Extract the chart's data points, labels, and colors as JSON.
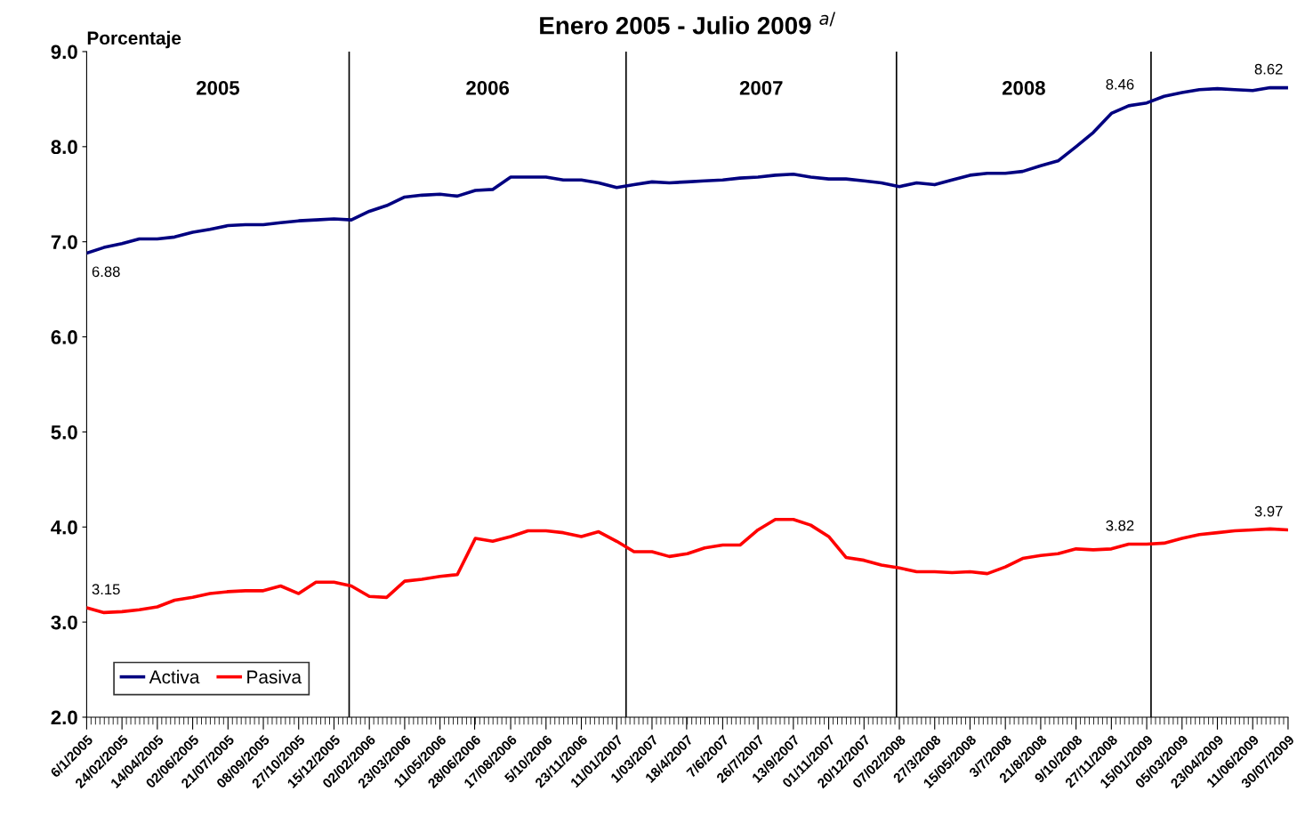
{
  "chart_data": {
    "type": "line",
    "title": "Enero 2005 - Julio 2009 $^{a/}$",
    "ylabel": "Porcentaje",
    "x": [
      "2005-01-06",
      "2005-01-30",
      "2005-02-24",
      "2005-03-20",
      "2005-04-14",
      "2005-05-08",
      "2005-06-02",
      "2005-06-26",
      "2005-07-21",
      "2005-08-14",
      "2005-09-08",
      "2005-10-02",
      "2005-10-27",
      "2005-11-20",
      "2005-12-15",
      "2006-01-08",
      "2006-02-02",
      "2006-02-26",
      "2006-03-23",
      "2006-04-16",
      "2006-05-11",
      "2006-06-04",
      "2006-06-29",
      "2006-07-23",
      "2006-08-17",
      "2006-09-10",
      "2006-10-05",
      "2006-10-29",
      "2006-11-23",
      "2006-12-17",
      "2007-01-11",
      "2007-02-04",
      "2007-03-01",
      "2007-03-25",
      "2007-04-19",
      "2007-05-13",
      "2007-06-07",
      "2007-07-01",
      "2007-07-26",
      "2007-08-19",
      "2007-09-13",
      "2007-10-07",
      "2007-11-01",
      "2007-11-25",
      "2007-12-20",
      "2008-01-13",
      "2008-02-07",
      "2008-03-02",
      "2008-03-27",
      "2008-04-20",
      "2008-05-15",
      "2008-06-08",
      "2008-07-03",
      "2008-07-27",
      "2008-08-21",
      "2008-09-14",
      "2008-10-09",
      "2008-11-02",
      "2008-11-27",
      "2008-12-21",
      "2009-01-15",
      "2009-02-08",
      "2009-03-05",
      "2009-03-29",
      "2009-04-23",
      "2009-05-17",
      "2009-06-11",
      "2009-07-05",
      "2009-07-30"
    ],
    "series": [
      {
        "name": "Activa",
        "color": "#000080",
        "values": [
          6.88,
          6.94,
          6.98,
          7.03,
          7.03,
          7.05,
          7.1,
          7.13,
          7.17,
          7.18,
          7.18,
          7.2,
          7.22,
          7.23,
          7.24,
          7.23,
          7.32,
          7.38,
          7.47,
          7.49,
          7.5,
          7.48,
          7.54,
          7.55,
          7.68,
          7.68,
          7.68,
          7.65,
          7.65,
          7.62,
          7.57,
          7.6,
          7.63,
          7.62,
          7.63,
          7.64,
          7.65,
          7.67,
          7.68,
          7.7,
          7.71,
          7.68,
          7.66,
          7.66,
          7.64,
          7.62,
          7.58,
          7.62,
          7.6,
          7.65,
          7.7,
          7.72,
          7.72,
          7.74,
          7.8,
          7.85,
          8.0,
          8.15,
          8.35,
          8.43,
          8.46,
          8.53,
          8.57,
          8.6,
          8.61,
          8.6,
          8.59,
          8.62,
          8.62
        ]
      },
      {
        "name": "Pasiva",
        "color": "#ff0000",
        "values": [
          3.15,
          3.1,
          3.11,
          3.13,
          3.16,
          3.23,
          3.26,
          3.3,
          3.32,
          3.33,
          3.33,
          3.38,
          3.3,
          3.42,
          3.42,
          3.38,
          3.27,
          3.26,
          3.43,
          3.45,
          3.48,
          3.5,
          3.88,
          3.85,
          3.9,
          3.96,
          3.96,
          3.94,
          3.9,
          3.95,
          3.85,
          3.74,
          3.74,
          3.69,
          3.72,
          3.78,
          3.81,
          3.81,
          3.97,
          4.08,
          4.08,
          4.02,
          3.9,
          3.68,
          3.65,
          3.6,
          3.57,
          3.53,
          3.53,
          3.52,
          3.53,
          3.51,
          3.58,
          3.67,
          3.7,
          3.72,
          3.77,
          3.76,
          3.77,
          3.82,
          3.82,
          3.83,
          3.88,
          3.92,
          3.94,
          3.96,
          3.97,
          3.98,
          3.97
        ]
      }
    ],
    "xlim": [
      "2005-01-06",
      "2009-07-30"
    ],
    "xticks": [
      {
        "value": "2005-01-06",
        "label": "6/1/2005"
      },
      {
        "value": "2005-02-24",
        "label": "24/02/2005"
      },
      {
        "value": "2005-04-14",
        "label": "14/04/2005"
      },
      {
        "value": "2005-06-02",
        "label": "02/06/2005"
      },
      {
        "value": "2005-07-21",
        "label": "21/07/2005"
      },
      {
        "value": "2005-09-08",
        "label": "08/09/2005"
      },
      {
        "value": "2005-10-27",
        "label": "27/10/2005"
      },
      {
        "value": "2005-12-15",
        "label": "15/12/2005"
      },
      {
        "value": "2006-02-02",
        "label": "02/02/2006"
      },
      {
        "value": "2006-03-23",
        "label": "23/03/2006"
      },
      {
        "value": "2006-05-11",
        "label": "11/05/2006"
      },
      {
        "value": "2006-06-28",
        "label": "28/06/2006"
      },
      {
        "value": "2006-08-17",
        "label": "17/08/2006"
      },
      {
        "value": "2006-10-05",
        "label": "5/10/2006"
      },
      {
        "value": "2006-11-23",
        "label": "23/11/2006"
      },
      {
        "value": "2007-01-11",
        "label": "11/01/2007"
      },
      {
        "value": "2007-03-01",
        "label": "1/03/2007"
      },
      {
        "value": "2007-04-18",
        "label": "18/4/2007"
      },
      {
        "value": "2007-06-07",
        "label": "7/6/2007"
      },
      {
        "value": "2007-07-26",
        "label": "26/7/2007"
      },
      {
        "value": "2007-09-13",
        "label": "13/9/2007"
      },
      {
        "value": "2007-11-01",
        "label": "01/11/2007"
      },
      {
        "value": "2007-12-20",
        "label": "20/12/2007"
      },
      {
        "value": "2008-02-07",
        "label": "07/02/2008"
      },
      {
        "value": "2008-03-27",
        "label": "27/3/2008"
      },
      {
        "value": "2008-05-15",
        "label": "15/05/2008"
      },
      {
        "value": "2008-07-03",
        "label": "3/7/2008"
      },
      {
        "value": "2008-08-21",
        "label": "21/8/2008"
      },
      {
        "value": "2008-10-09",
        "label": "9/10/2008"
      },
      {
        "value": "2008-11-27",
        "label": "27/11/2008"
      },
      {
        "value": "2009-01-15",
        "label": "15/01/2009"
      },
      {
        "value": "2009-03-05",
        "label": "05/03/2009"
      },
      {
        "value": "2009-04-23",
        "label": "23/04/2009"
      },
      {
        "value": "2009-06-11",
        "label": "11/06/2009"
      },
      {
        "value": "2009-07-30",
        "label": "30/07/2009"
      }
    ],
    "ylim": [
      2,
      9
    ],
    "yticks": [
      {
        "value": 2,
        "label": "2.0"
      },
      {
        "value": 3,
        "label": "3.0"
      },
      {
        "value": 4,
        "label": "4.0"
      },
      {
        "value": 5,
        "label": "5.0"
      },
      {
        "value": 6,
        "label": "6.0"
      },
      {
        "value": 7,
        "label": "7.0"
      },
      {
        "value": 8,
        "label": "8.0"
      },
      {
        "value": 9,
        "label": "9.0"
      }
    ],
    "ref_lines": [
      {
        "axis": "x",
        "value": "2006-01-05",
        "color": "#000000"
      },
      {
        "axis": "x",
        "value": "2007-01-24",
        "color": "#000000"
      },
      {
        "axis": "x",
        "value": "2008-02-03",
        "color": "#000000"
      },
      {
        "axis": "x",
        "value": "2009-01-21",
        "color": "#000000"
      }
    ],
    "annotations": [
      "2005",
      "2006",
      "2007",
      "2008",
      {
        "text": "6.88",
        "x": "2005-01-06",
        "y": 6.88
      },
      {
        "text": "8.46",
        "x": "2009-01-15",
        "y": 8.46
      },
      {
        "text": "8.62",
        "x": "2009-07-30",
        "y": 8.62
      },
      {
        "text": "3.15",
        "x": "2005-01-06",
        "y": 3.15
      },
      {
        "text": "3.82",
        "x": "2009-01-15",
        "y": 3.82
      },
      {
        "text": "3.97",
        "x": "2009-07-30",
        "y": 3.97
      }
    ],
    "legend": "bottom left",
    "grid": false,
    "marker": "none",
    "line_style": "solid"
  }
}
